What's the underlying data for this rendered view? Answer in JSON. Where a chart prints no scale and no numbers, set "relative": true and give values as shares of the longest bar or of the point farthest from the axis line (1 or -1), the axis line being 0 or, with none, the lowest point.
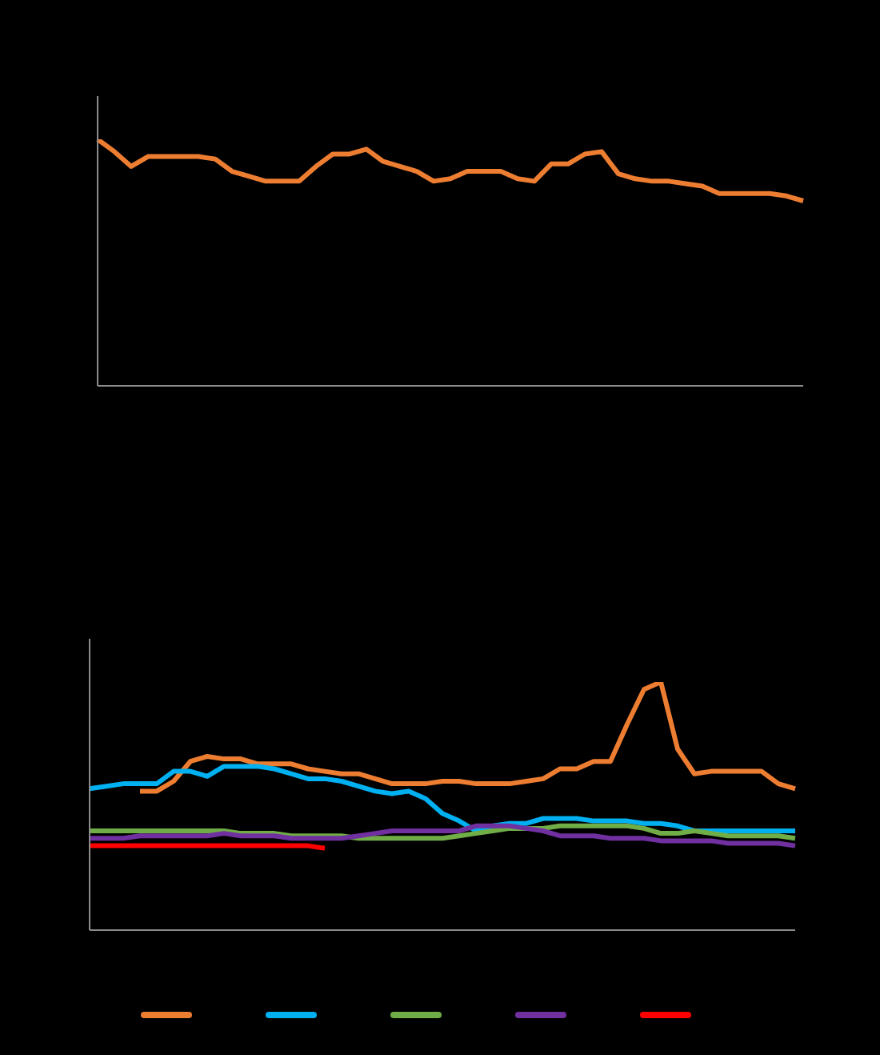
{
  "chart_data": [
    {
      "type": "line",
      "relative": true,
      "legend": false,
      "categories": [
        null,
        null,
        null,
        null,
        null,
        null,
        null,
        null,
        null,
        null,
        null,
        null,
        null,
        null,
        null,
        null,
        null,
        null,
        null,
        null,
        null,
        null,
        null,
        null,
        null,
        null,
        null,
        null,
        null,
        null,
        null,
        null,
        null,
        null,
        null,
        null,
        null,
        null,
        null,
        null,
        null,
        null,
        null
      ],
      "series": [
        {
          "color": "#ed7d31",
          "values": [
            1.0,
            0.95,
            0.89,
            0.93,
            0.93,
            0.93,
            0.93,
            0.92,
            0.87,
            0.85,
            0.83,
            0.83,
            0.83,
            0.89,
            0.94,
            0.94,
            0.96,
            0.91,
            0.89,
            0.87,
            0.83,
            0.84,
            0.87,
            0.87,
            0.87,
            0.84,
            0.83,
            0.9,
            0.9,
            0.94,
            0.95,
            0.86,
            0.84,
            0.83,
            0.83,
            0.82,
            0.81,
            0.78,
            0.78,
            0.78,
            0.78,
            0.77,
            0.75
          ]
        }
      ]
    },
    {
      "type": "line",
      "relative": true,
      "legend": false,
      "categories": [
        null,
        null,
        null,
        null,
        null,
        null,
        null,
        null,
        null,
        null,
        null,
        null,
        null,
        null,
        null,
        null,
        null,
        null,
        null,
        null,
        null,
        null,
        null,
        null,
        null,
        null,
        null,
        null,
        null,
        null,
        null,
        null,
        null,
        null,
        null,
        null,
        null,
        null,
        null,
        null,
        null,
        null,
        null
      ],
      "series": [
        {
          "color": "#ed7d31",
          "values": [
            null,
            null,
            null,
            0.56,
            0.56,
            0.6,
            0.68,
            0.7,
            0.69,
            0.69,
            0.67,
            0.67,
            0.67,
            0.65,
            0.64,
            0.63,
            0.63,
            0.61,
            0.59,
            0.59,
            0.59,
            0.6,
            0.6,
            0.59,
            0.59,
            0.59,
            0.6,
            0.61,
            0.65,
            0.65,
            0.68,
            0.68,
            0.83,
            0.97,
            1.0,
            0.73,
            0.63,
            0.64,
            0.64,
            0.64,
            0.64,
            0.59,
            0.57
          ]
        },
        {
          "color": "#00b0f0",
          "values": [
            0.57,
            0.58,
            0.59,
            0.59,
            0.59,
            0.64,
            0.64,
            0.62,
            0.66,
            0.66,
            0.66,
            0.65,
            0.63,
            0.61,
            0.61,
            0.6,
            0.58,
            0.56,
            0.55,
            0.56,
            0.53,
            0.47,
            0.44,
            0.4,
            0.42,
            0.43,
            0.43,
            0.45,
            0.45,
            0.45,
            0.44,
            0.44,
            0.44,
            0.43,
            0.43,
            0.42,
            0.4,
            0.4,
            0.4,
            0.4,
            0.4,
            0.4,
            0.4
          ]
        },
        {
          "color": "#70ad47",
          "values": [
            0.4,
            0.4,
            0.4,
            0.4,
            0.4,
            0.4,
            0.4,
            0.4,
            0.4,
            0.39,
            0.39,
            0.39,
            0.38,
            0.38,
            0.38,
            0.38,
            0.37,
            0.37,
            0.37,
            0.37,
            0.37,
            0.37,
            0.38,
            0.39,
            0.4,
            0.41,
            0.41,
            0.41,
            0.42,
            0.42,
            0.42,
            0.42,
            0.42,
            0.41,
            0.39,
            0.39,
            0.4,
            0.39,
            0.38,
            0.38,
            0.38,
            0.38,
            0.37
          ]
        },
        {
          "color": "#7030a0",
          "values": [
            0.37,
            0.37,
            0.37,
            0.38,
            0.38,
            0.38,
            0.38,
            0.38,
            0.39,
            0.38,
            0.38,
            0.38,
            0.37,
            0.37,
            0.37,
            0.37,
            0.38,
            0.39,
            0.4,
            0.4,
            0.4,
            0.4,
            0.4,
            0.42,
            0.42,
            0.42,
            0.41,
            0.4,
            0.38,
            0.38,
            0.38,
            0.37,
            0.37,
            0.37,
            0.36,
            0.36,
            0.36,
            0.36,
            0.35,
            0.35,
            0.35,
            0.35,
            0.34
          ]
        },
        {
          "color": "#ff0000",
          "values": [
            0.34,
            0.34,
            0.34,
            0.34,
            0.34,
            0.34,
            0.34,
            0.34,
            0.34,
            0.34,
            0.34,
            0.34,
            0.34,
            0.34,
            0.33,
            null,
            null,
            null,
            null,
            null,
            null,
            null,
            null,
            null,
            null,
            null,
            null,
            null,
            null,
            null,
            null,
            null,
            null,
            null,
            null,
            null,
            null,
            null,
            null,
            null,
            null,
            null,
            null
          ]
        }
      ]
    }
  ]
}
